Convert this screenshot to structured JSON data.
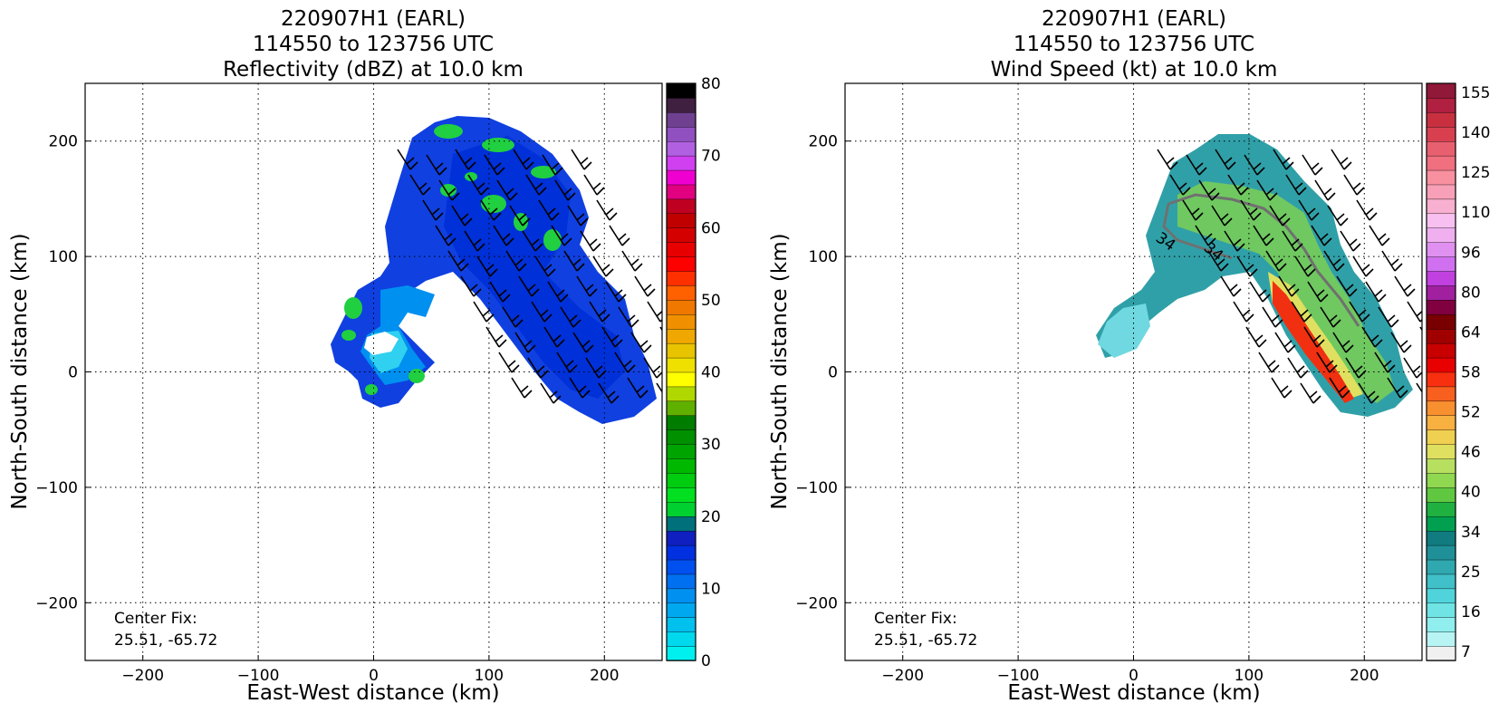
{
  "chart_data": [
    {
      "type": "heatmap",
      "title": [
        "220907H1 (EARL)",
        "114550 to 123756 UTC",
        "Reflectivity (dBZ) at 10.0 km"
      ],
      "xlabel": "East-West distance (km)",
      "ylabel": "North-South distance (km)",
      "xlim": [
        -250,
        250
      ],
      "ylim": [
        -250,
        250
      ],
      "xticks": [
        -200,
        -100,
        0,
        100,
        200
      ],
      "yticks": [
        -200,
        -100,
        0,
        100,
        200
      ],
      "xtick_labels": [
        "−200",
        "−100",
        "0",
        "100",
        "200"
      ],
      "ytick_labels": [
        "−200",
        "−100",
        "0",
        "100",
        "200"
      ],
      "grid": true,
      "annotation": [
        "Center Fix:",
        "25.51, -65.72"
      ],
      "colorbar": {
        "min": 0,
        "max": 80,
        "ticks": [
          0,
          10,
          20,
          30,
          40,
          50,
          60,
          70,
          80
        ],
        "colors": [
          "#00f0f0",
          "#00d8ee",
          "#00c0ee",
          "#00a8f0",
          "#0090f0",
          "#0070f0",
          "#0050f0",
          "#0030e0",
          "#1020c0",
          "#00707a",
          "#00d030",
          "#00e020",
          "#00cc10",
          "#00b800",
          "#00a400",
          "#009000",
          "#007c00",
          "#60b000",
          "#b0d800",
          "#ffff00",
          "#f0e000",
          "#e8c400",
          "#f0a800",
          "#f09000",
          "#f07800",
          "#ff6000",
          "#ff3000",
          "#ff0000",
          "#e80000",
          "#d40000",
          "#c00000",
          "#c00020",
          "#e00080",
          "#f000d0",
          "#d040f0",
          "#b060e0",
          "#9050c0",
          "#704090",
          "#402040",
          "#000000"
        ]
      },
      "barbs": "wind barbs over the echo region",
      "regions": [
        {
          "label": "echo-region",
          "value_range_dbz": [
            5,
            30
          ]
        }
      ]
    },
    {
      "type": "heatmap",
      "title": [
        "220907H1 (EARL)",
        "114550 to 123756 UTC",
        "Wind Speed (kt) at 10.0 km"
      ],
      "xlabel": "East-West distance (km)",
      "ylabel": "North-South distance (km)",
      "xlim": [
        -250,
        250
      ],
      "ylim": [
        -250,
        250
      ],
      "xticks": [
        -200,
        -100,
        0,
        100,
        200
      ],
      "yticks": [
        -200,
        -100,
        0,
        100,
        200
      ],
      "xtick_labels": [
        "−200",
        "−100",
        "0",
        "100",
        "200"
      ],
      "ytick_labels": [
        "−200",
        "−100",
        "0",
        "100",
        "200"
      ],
      "grid": true,
      "annotation": [
        "Center Fix:",
        "25.51, -65.72"
      ],
      "contour_labels": [
        "34",
        "34"
      ],
      "colorbar": {
        "tick_labels": [
          "7",
          "16",
          "25",
          "34",
          "40",
          "46",
          "52",
          "58",
          "64",
          "80",
          "96",
          "110",
          "125",
          "140",
          "155"
        ],
        "colors": [
          "#f0f0f0",
          "#b8f4f4",
          "#90eeee",
          "#70e4e4",
          "#50d4dc",
          "#40c0c8",
          "#30a8b0",
          "#209098",
          "#107c80",
          "#00a050",
          "#20b040",
          "#60c840",
          "#90d850",
          "#b8e060",
          "#e0e060",
          "#f0d050",
          "#f8b040",
          "#f89030",
          "#f86020",
          "#f83010",
          "#e80000",
          "#c80000",
          "#a00000",
          "#780000",
          "#800040",
          "#a020a0",
          "#c040e0",
          "#d070f0",
          "#e090f0",
          "#f0b0f0",
          "#f8c0f0",
          "#f8b0d0",
          "#f8a0b8",
          "#f890a0",
          "#f07080",
          "#e86070",
          "#d84050",
          "#c83040",
          "#b02040",
          "#901838"
        ]
      },
      "regions": [
        {
          "label": "wind-region",
          "value_range_kt": [
            16,
            64
          ]
        }
      ]
    }
  ]
}
